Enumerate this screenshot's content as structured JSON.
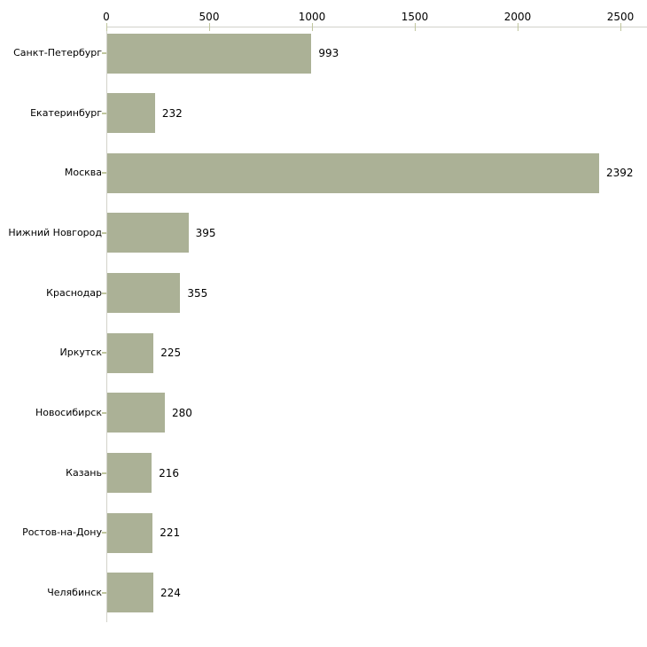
{
  "chart_data": {
    "type": "bar",
    "orientation": "horizontal",
    "title": "",
    "xlabel": "",
    "ylabel": "",
    "categories": [
      "Санкт-Петербург",
      "Екатеринбург",
      "Москва",
      "Нижний Новгород",
      "Краснодар",
      "Иркутск",
      "Новосибирск",
      "Казань",
      "Ростов-на-Дону",
      "Челябинск"
    ],
    "values": [
      993,
      232,
      2392,
      395,
      355,
      225,
      280,
      216,
      221,
      224
    ],
    "value_labels": [
      "993",
      "232",
      "2392",
      "395",
      "355",
      "225",
      "280",
      "216",
      "221",
      "224"
    ],
    "xlim": [
      0,
      2500
    ],
    "x_ticks": [
      0,
      500,
      1000,
      1500,
      2000,
      2500
    ],
    "x_tick_labels": [
      "0",
      "500",
      "1000",
      "1500",
      "2000",
      "2500"
    ],
    "axis_position": "top",
    "grid": false,
    "legend": false,
    "colors": {
      "bar_fill": "#abb196",
      "axis_line": "#d2d2ca",
      "tick_mark": "#c0c69e",
      "text": "#000000",
      "background": "#ffffff"
    }
  }
}
